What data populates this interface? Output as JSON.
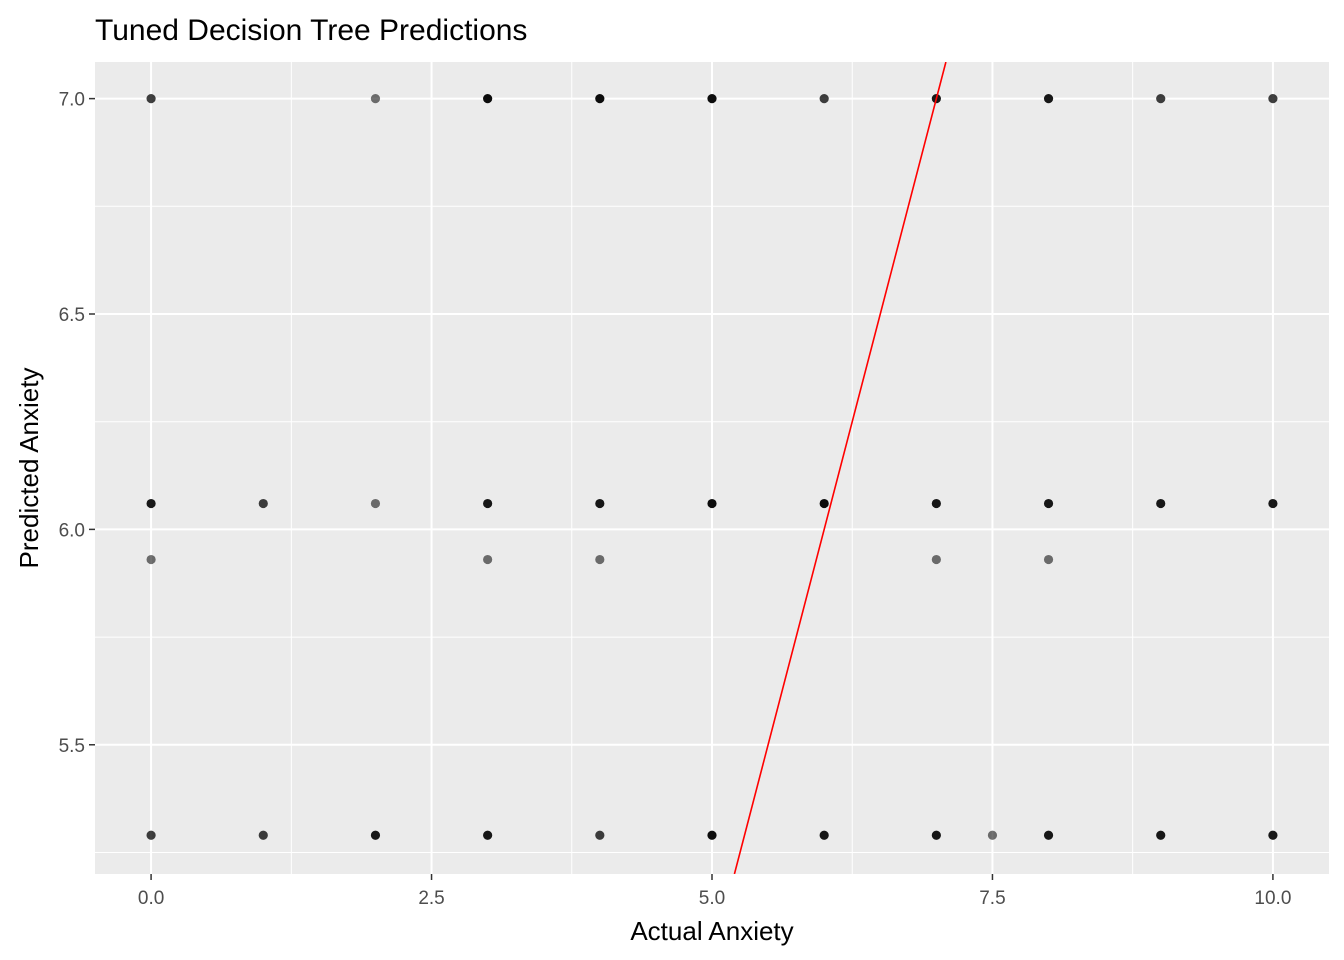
{
  "chart_data": {
    "type": "scatter",
    "title": "Tuned Decision Tree Predictions",
    "xlabel": "Actual Anxiety",
    "ylabel": "Predicted Anxiety",
    "xlim": [
      -0.5,
      10.5
    ],
    "ylim": [
      5.2,
      7.085
    ],
    "xticks": [
      0.0,
      2.5,
      5.0,
      7.5,
      10.0
    ],
    "xtick_labels": [
      "0.0",
      "2.5",
      "5.0",
      "7.5",
      "10.0"
    ],
    "yticks": [
      5.5,
      6.0,
      6.5,
      7.0
    ],
    "ytick_labels": [
      "5.5",
      "6.0",
      "6.5",
      "7.0"
    ],
    "grid": true,
    "panel_background": "#ebebeb",
    "grid_color": "#ffffff",
    "point_color": "#000000",
    "reference_line": {
      "type": "identity",
      "slope": 1,
      "intercept": 0,
      "color": "#ff0000"
    },
    "points": [
      {
        "x": 0,
        "y": 7.0,
        "alpha": 0.75
      },
      {
        "x": 2,
        "y": 7.0,
        "alpha": 0.55
      },
      {
        "x": 3,
        "y": 7.0,
        "alpha": 0.95
      },
      {
        "x": 4,
        "y": 7.0,
        "alpha": 0.95
      },
      {
        "x": 5,
        "y": 7.0,
        "alpha": 0.95
      },
      {
        "x": 6,
        "y": 7.0,
        "alpha": 0.75
      },
      {
        "x": 7,
        "y": 7.0,
        "alpha": 0.9
      },
      {
        "x": 8,
        "y": 7.0,
        "alpha": 0.9
      },
      {
        "x": 9,
        "y": 7.0,
        "alpha": 0.75
      },
      {
        "x": 10,
        "y": 7.0,
        "alpha": 0.75
      },
      {
        "x": 0,
        "y": 6.06,
        "alpha": 0.9
      },
      {
        "x": 1,
        "y": 6.06,
        "alpha": 0.75
      },
      {
        "x": 2,
        "y": 6.06,
        "alpha": 0.55
      },
      {
        "x": 3,
        "y": 6.06,
        "alpha": 0.9
      },
      {
        "x": 4,
        "y": 6.06,
        "alpha": 0.9
      },
      {
        "x": 5,
        "y": 6.06,
        "alpha": 0.95
      },
      {
        "x": 6,
        "y": 6.06,
        "alpha": 0.95
      },
      {
        "x": 7,
        "y": 6.06,
        "alpha": 0.9
      },
      {
        "x": 8,
        "y": 6.06,
        "alpha": 0.9
      },
      {
        "x": 9,
        "y": 6.06,
        "alpha": 0.9
      },
      {
        "x": 10,
        "y": 6.06,
        "alpha": 0.9
      },
      {
        "x": 0,
        "y": 5.93,
        "alpha": 0.55
      },
      {
        "x": 3,
        "y": 5.93,
        "alpha": 0.55
      },
      {
        "x": 4,
        "y": 5.93,
        "alpha": 0.55
      },
      {
        "x": 7,
        "y": 5.93,
        "alpha": 0.55
      },
      {
        "x": 8,
        "y": 5.93,
        "alpha": 0.55
      },
      {
        "x": 0,
        "y": 5.29,
        "alpha": 0.75
      },
      {
        "x": 1,
        "y": 5.29,
        "alpha": 0.75
      },
      {
        "x": 2,
        "y": 5.29,
        "alpha": 0.9
      },
      {
        "x": 3,
        "y": 5.29,
        "alpha": 0.9
      },
      {
        "x": 4,
        "y": 5.29,
        "alpha": 0.75
      },
      {
        "x": 5,
        "y": 5.29,
        "alpha": 0.95
      },
      {
        "x": 6,
        "y": 5.29,
        "alpha": 0.9
      },
      {
        "x": 7,
        "y": 5.29,
        "alpha": 0.9
      },
      {
        "x": 7.5,
        "y": 5.29,
        "alpha": 0.55
      },
      {
        "x": 8,
        "y": 5.29,
        "alpha": 0.9
      },
      {
        "x": 9,
        "y": 5.29,
        "alpha": 0.9
      },
      {
        "x": 10,
        "y": 5.29,
        "alpha": 0.9
      }
    ]
  }
}
